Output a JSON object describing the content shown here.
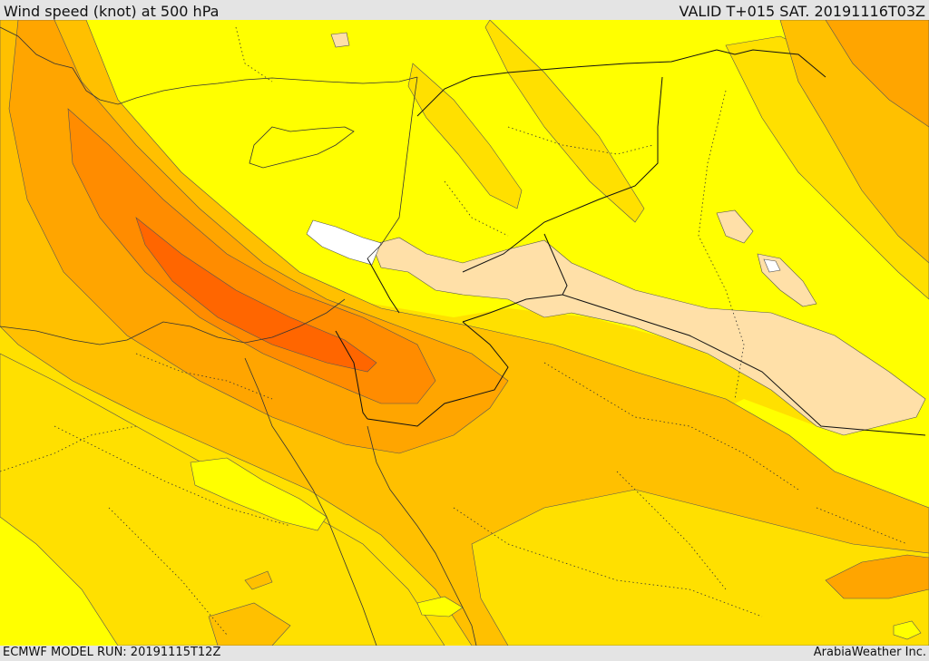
{
  "header": {
    "title": "Wind speed (knot) at 500 hPa",
    "valid_time": "VALID T+015 SAT. 20191116T03Z"
  },
  "footer": {
    "model_run": "ECMWF MODEL RUN: 20191115T12Z",
    "credit": "ArabiaWeather Inc."
  },
  "map": {
    "variable": "wind speed",
    "unit": "knot",
    "pressure_level": "500 hPa",
    "colors": {
      "level_1_pale": "#ffe0a8",
      "level_2_yellow": "#ffff00",
      "level_3_gold": "#ffe000",
      "level_4_amber": "#ffc000",
      "level_5_orange": "#ffa500",
      "level_6_darkorange": "#ff8c00",
      "level_7_redorange": "#ff6600",
      "no_data_white": "#ffffff",
      "coastline": "#333333",
      "border": "#000000"
    }
  }
}
